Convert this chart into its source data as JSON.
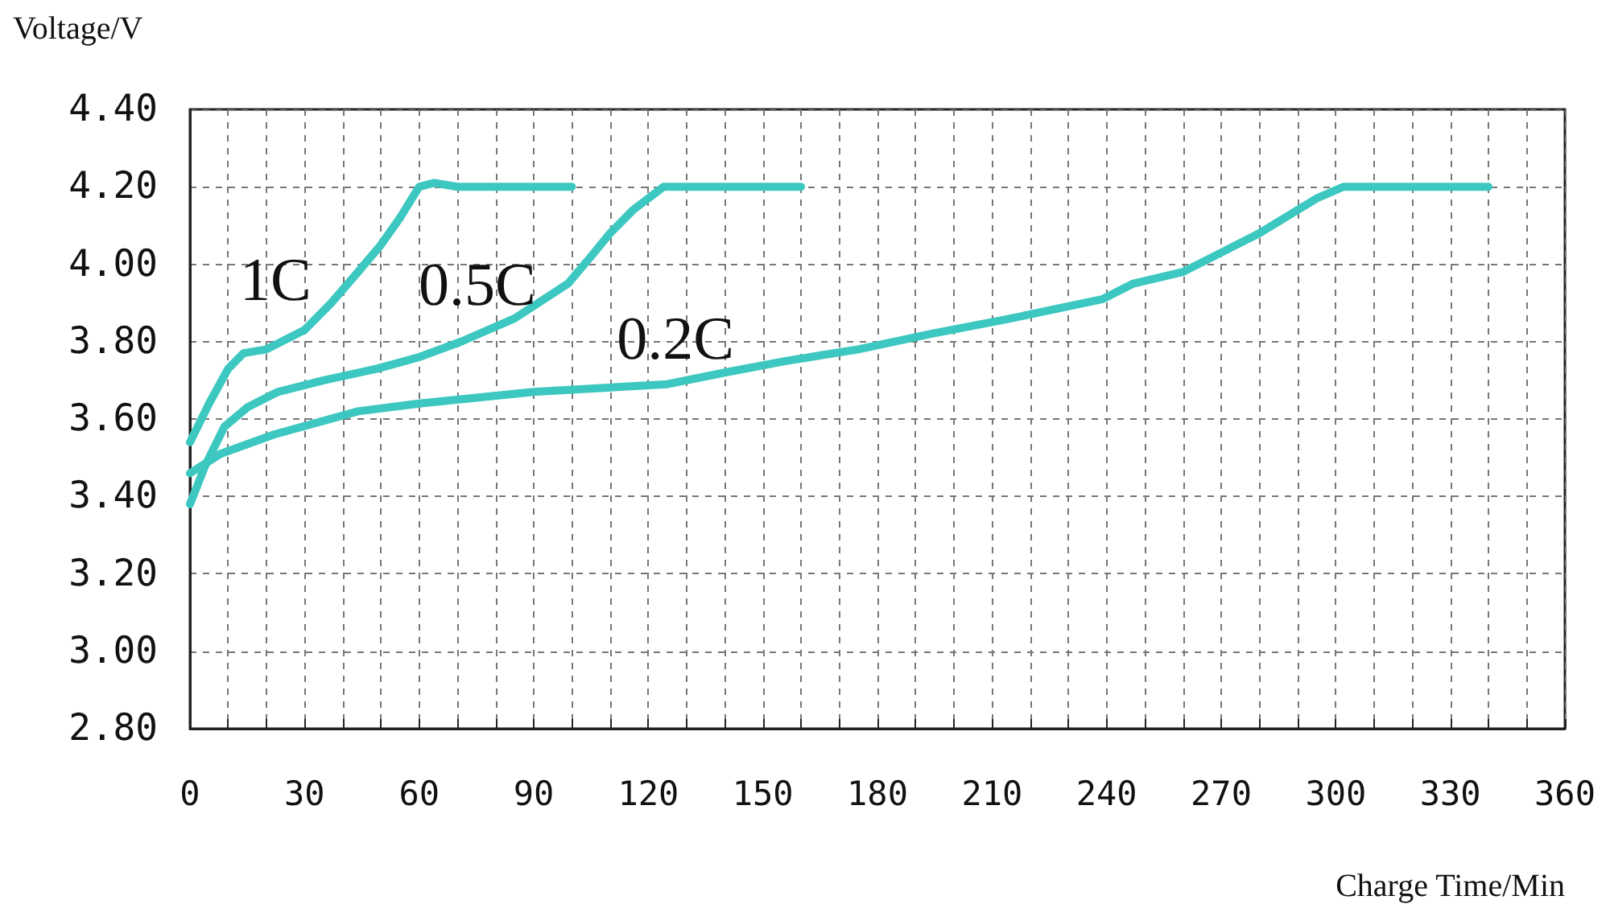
{
  "chart_data": {
    "type": "line",
    "xlabel": "Charge Time/Min",
    "ylabel": "Voltage/V",
    "grid": true,
    "legend": false,
    "marker": "none",
    "line_style": "solid",
    "xlim": [
      0,
      360
    ],
    "ylim": [
      2.8,
      4.4
    ],
    "xticks": [
      0,
      {
        "value": 10,
        "label": null
      },
      {
        "value": 20,
        "label": null
      },
      30,
      {
        "value": 40,
        "label": null
      },
      {
        "value": 50,
        "label": null
      },
      60,
      {
        "value": 70,
        "label": null
      },
      {
        "value": 80,
        "label": null
      },
      90,
      {
        "value": 100,
        "label": null
      },
      {
        "value": 110,
        "label": null
      },
      120,
      {
        "value": 130,
        "label": null
      },
      {
        "value": 140,
        "label": null
      },
      150,
      {
        "value": 160,
        "label": null
      },
      {
        "value": 170,
        "label": null
      },
      180,
      {
        "value": 190,
        "label": null
      },
      {
        "value": 200,
        "label": null
      },
      210,
      {
        "value": 220,
        "label": null
      },
      {
        "value": 230,
        "label": null
      },
      240,
      {
        "value": 250,
        "label": null
      },
      {
        "value": 260,
        "label": null
      },
      270,
      {
        "value": 280,
        "label": null
      },
      {
        "value": 290,
        "label": null
      },
      300,
      {
        "value": 310,
        "label": null
      },
      {
        "value": 320,
        "label": null
      },
      330,
      {
        "value": 340,
        "label": null
      },
      {
        "value": 350,
        "label": null
      },
      360
    ],
    "yticks": [
      {
        "value": 2.8,
        "label": "2.80"
      },
      {
        "value": 3.0,
        "label": "3.00"
      },
      {
        "value": 3.2,
        "label": "3.20"
      },
      {
        "value": 3.4,
        "label": "3.40"
      },
      {
        "value": 3.6,
        "label": "3.60"
      },
      {
        "value": 3.8,
        "label": "3.80"
      },
      {
        "value": 4.0,
        "label": "4.00"
      },
      {
        "value": 4.2,
        "label": "4.20"
      },
      {
        "value": 4.4,
        "label": "4.40"
      }
    ],
    "series": [
      {
        "name": "1C",
        "color": "#3cc8c0",
        "x": [
          0,
          5,
          10,
          14,
          20,
          30,
          37,
          44,
          50,
          55,
          60,
          64,
          70,
          100
        ],
        "values": [
          3.54,
          3.64,
          3.73,
          3.77,
          3.78,
          3.83,
          3.9,
          3.98,
          4.05,
          4.12,
          4.2,
          4.21,
          4.2,
          4.2
        ]
      },
      {
        "name": "0.5C",
        "color": "#3cc8c0",
        "x": [
          0,
          4,
          9,
          15,
          23,
          35,
          49,
          60,
          71,
          85,
          99,
          105,
          110,
          116,
          124,
          160
        ],
        "values": [
          3.38,
          3.48,
          3.58,
          3.63,
          3.67,
          3.7,
          3.73,
          3.76,
          3.8,
          3.86,
          3.95,
          4.02,
          4.08,
          4.14,
          4.2,
          4.2
        ]
      },
      {
        "name": "0.2C",
        "color": "#3cc8c0",
        "x": [
          0,
          8,
          22,
          44,
          60,
          90,
          125,
          140,
          156,
          175,
          194,
          215,
          239,
          247,
          260,
          280,
          295,
          302,
          340
        ],
        "values": [
          3.46,
          3.51,
          3.56,
          3.62,
          3.64,
          3.67,
          3.69,
          3.72,
          3.75,
          3.78,
          3.82,
          3.86,
          3.91,
          3.95,
          3.98,
          4.08,
          4.17,
          4.2,
          4.2
        ]
      }
    ]
  }
}
